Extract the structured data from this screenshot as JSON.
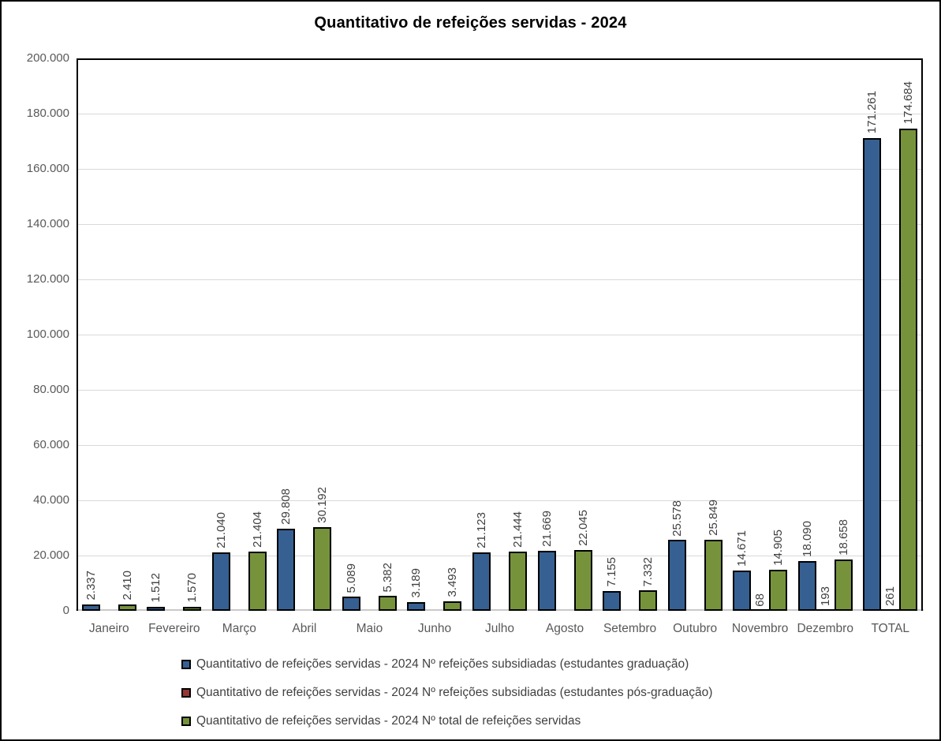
{
  "chart_data": {
    "type": "bar",
    "title": "Quantitativo de refeições servidas - 2024",
    "categories": [
      "Janeiro",
      "Fevereiro",
      "Março",
      "Abril",
      "Maio",
      "Junho",
      "Julho",
      "Agosto",
      "Setembro",
      "Outubro",
      "Novembro",
      "Dezembro",
      "TOTAL"
    ],
    "series": [
      {
        "name": "Quantitativo de refeições servidas - 2024 Nº refeições subsidiadas (estudantes graduação)",
        "color": "#376092",
        "values": [
          2337,
          1512,
          21040,
          29808,
          5089,
          3189,
          21123,
          21669,
          7155,
          25578,
          14671,
          18090,
          171261
        ]
      },
      {
        "name": "Quantitativo de refeições servidas - 2024 Nº refeições subsidiadas (estudantes pós-graduação)",
        "color": "#953735",
        "values": [
          null,
          null,
          null,
          null,
          null,
          null,
          null,
          null,
          null,
          null,
          68,
          193,
          261
        ]
      },
      {
        "name": "Quantitativo de refeições servidas - 2024 Nº total de refeições servidas",
        "color": "#76933C",
        "values": [
          2410,
          1570,
          21404,
          30192,
          5382,
          3493,
          21444,
          22045,
          7332,
          25849,
          14905,
          18658,
          174684
        ]
      }
    ],
    "ylim": [
      0,
      200000
    ],
    "ytick_step": 20000,
    "ytick_labels": [
      "0",
      "20.000",
      "40.000",
      "60.000",
      "80.000",
      "100.000",
      "120.000",
      "140.000",
      "160.000",
      "180.000",
      "200.000"
    ],
    "grid": true,
    "legend_position": "bottom",
    "data_label_rotation": 90,
    "thousands_separator": "."
  },
  "style": {
    "bar_border_color": "#000000",
    "gridline_color": "#d9d9d9",
    "axis_line_color": "#c9c9c9",
    "tick_label_color": "#595959",
    "data_label_color": "#404040",
    "title_color": "#000000",
    "background": "#ffffff",
    "outer_border_color": "#000000"
  }
}
